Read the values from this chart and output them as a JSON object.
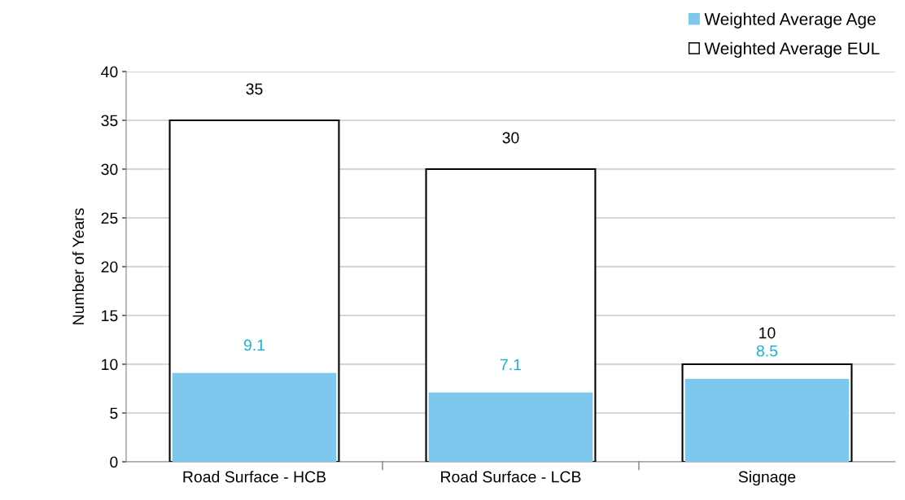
{
  "chart_data": {
    "type": "bar",
    "ylabel": "Number of Years",
    "categories": [
      "Road Surface - HCB",
      "Road Surface - LCB",
      "Signage"
    ],
    "series": [
      {
        "name": "Weighted Average Age",
        "color": "#7ec8ee",
        "values": [
          9.1,
          7.1,
          8.5
        ]
      },
      {
        "name": "Weighted Average EUL",
        "color": "#ffffff",
        "values": [
          35,
          30,
          10
        ]
      }
    ],
    "ylim": [
      0,
      40
    ],
    "yticks": [
      0,
      5,
      10,
      15,
      20,
      25,
      30,
      35,
      40
    ],
    "grid": "y",
    "legend": "top right",
    "data_labels": true
  }
}
